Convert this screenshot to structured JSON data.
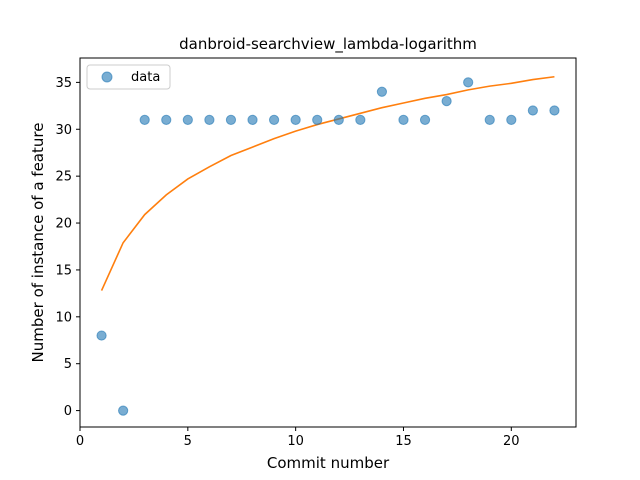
{
  "chart_data": {
    "type": "scatter",
    "title": "danbroid-searchview_lambda-logarithm",
    "xlabel": "Commit number",
    "ylabel": "Number of instance of a feature",
    "xlim": [
      0,
      23
    ],
    "ylim": [
      -1.75,
      37.6
    ],
    "xticks": [
      0,
      5,
      10,
      15,
      20
    ],
    "yticks": [
      0,
      5,
      10,
      15,
      20,
      25,
      30,
      35
    ],
    "grid": false,
    "legend_position": "upper-left",
    "series": [
      {
        "name": "data",
        "kind": "scatter",
        "color": "#1f77b4",
        "x": [
          1,
          2,
          3,
          4,
          5,
          6,
          7,
          8,
          9,
          10,
          11,
          12,
          13,
          14,
          15,
          16,
          17,
          18,
          19,
          20,
          21,
          22
        ],
        "y": [
          8,
          0,
          31,
          31,
          31,
          31,
          31,
          31,
          31,
          31,
          31,
          31,
          31,
          34,
          31,
          31,
          33,
          35,
          31,
          31,
          32,
          32
        ]
      },
      {
        "kind": "line",
        "color": "#ff7f0e",
        "x": [
          1,
          2,
          3,
          4,
          5,
          6,
          7,
          8,
          9,
          10,
          11,
          12,
          13,
          14,
          15,
          16,
          17,
          18,
          19,
          20,
          21,
          22
        ],
        "y": [
          12.8,
          17.9,
          20.9,
          23.0,
          24.7,
          26.0,
          27.2,
          28.1,
          29.0,
          29.8,
          30.5,
          31.1,
          31.7,
          32.3,
          32.8,
          33.3,
          33.7,
          34.2,
          34.6,
          34.9,
          35.3,
          35.6
        ]
      }
    ]
  }
}
